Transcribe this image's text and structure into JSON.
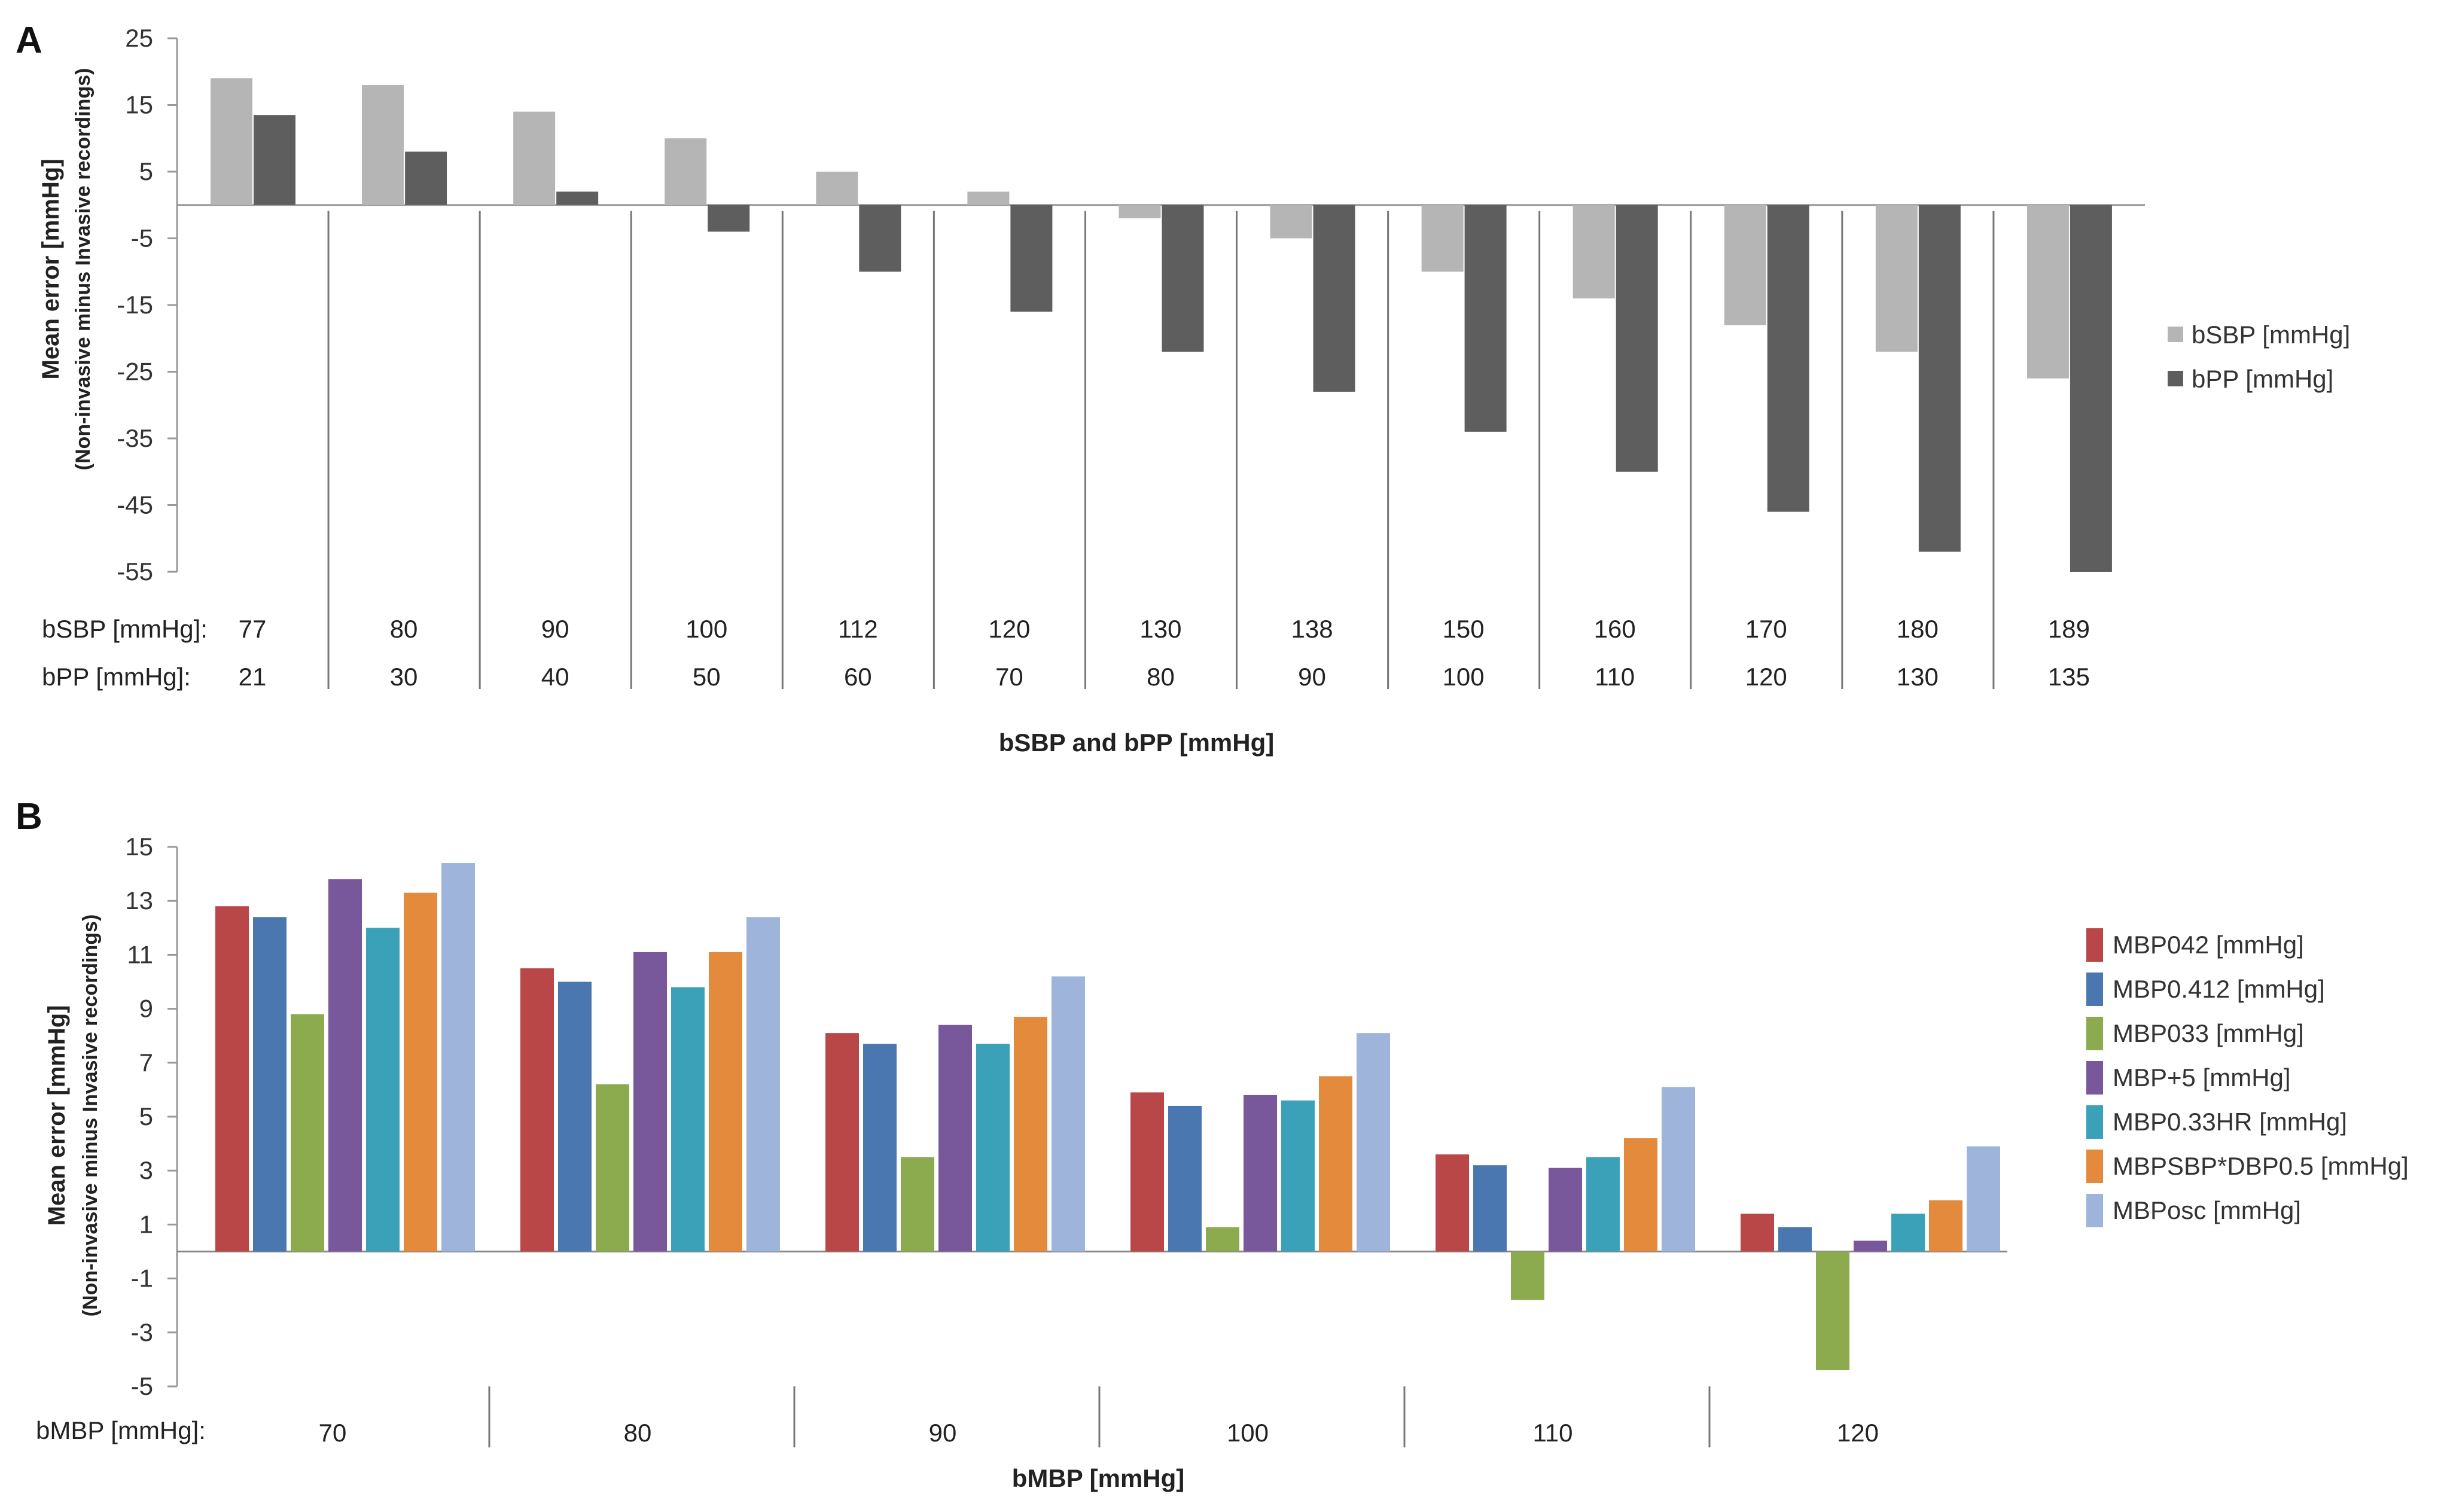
{
  "colors": {
    "bSBP": "#b5b5b5",
    "bPP": "#5e5e5e",
    "MBP042": "#b94747",
    "MBP0412": "#4a77b0",
    "MBP033": "#8cab4e",
    "MBP5": "#78579b",
    "MBP033HR": "#3aa1b8",
    "MBPSBP": "#e48a3c",
    "MBPosc": "#9fb4da"
  },
  "chart_data": [
    {
      "panel": "A",
      "type": "bar",
      "ylabel": "Mean error [mmHg]",
      "ylabel2": "(Non-invasive minus Invasive recordings)",
      "xlabel": "bSBP and bPP [mmHg]",
      "ylim": [
        -55,
        25
      ],
      "yticks": [
        25,
        15,
        5,
        -5,
        -15,
        -25,
        -35,
        -45,
        -55
      ],
      "row_labels": [
        "bSBP [mmHg]:",
        "bPP [mmHg]:"
      ],
      "categories_bSBP": [
        "77",
        "80",
        "90",
        "100",
        "112",
        "120",
        "130",
        "138",
        "150",
        "160",
        "170",
        "180",
        "189"
      ],
      "categories_bPP": [
        "21",
        "30",
        "40",
        "50",
        "60",
        "70",
        "80",
        "90",
        "100",
        "110",
        "120",
        "130",
        "135"
      ],
      "legend_position": "right",
      "series": [
        {
          "name": "bSBP [mmHg]",
          "color_key": "bSBP",
          "values": [
            19,
            18,
            14,
            10,
            5,
            2,
            -2,
            -5,
            -10,
            -14,
            -18,
            -22,
            -26
          ]
        },
        {
          "name": "bPP [mmHg]",
          "color_key": "bPP",
          "values": [
            13.5,
            8,
            2,
            -4,
            -10,
            -16,
            -22,
            -28,
            -34,
            -40,
            -46,
            -52,
            -55
          ]
        }
      ]
    },
    {
      "panel": "B",
      "type": "bar",
      "ylabel": "Mean error [mmHg]",
      "ylabel2": "(Non-invasive minus Invasive recordings)",
      "xlabel": "bMBP [mmHg]",
      "ylim": [
        -5,
        15
      ],
      "yticks": [
        15,
        13,
        11,
        9,
        7,
        5,
        3,
        1,
        -1,
        -3,
        -5
      ],
      "row_label": "bMBP [mmHg]:",
      "categories": [
        "70",
        "80",
        "90",
        "100",
        "110",
        "120"
      ],
      "legend_position": "right",
      "series": [
        {
          "name": "MBP042 [mmHg]",
          "color_key": "MBP042",
          "values": [
            12.8,
            10.5,
            8.1,
            5.9,
            3.6,
            1.4
          ]
        },
        {
          "name": "MBP0.412 [mmHg]",
          "color_key": "MBP0412",
          "values": [
            12.4,
            10.0,
            7.7,
            5.4,
            3.2,
            0.9
          ]
        },
        {
          "name": "MBP033 [mmHg]",
          "color_key": "MBP033",
          "values": [
            8.8,
            6.2,
            3.5,
            0.9,
            -1.8,
            -4.4
          ]
        },
        {
          "name": "MBP+5 [mmHg]",
          "color_key": "MBP5",
          "values": [
            13.8,
            11.1,
            8.4,
            5.8,
            3.1,
            0.4
          ]
        },
        {
          "name": "MBP0.33HR [mmHg]",
          "color_key": "MBP033HR",
          "values": [
            12.0,
            9.8,
            7.7,
            5.6,
            3.5,
            1.4
          ]
        },
        {
          "name": "MBPSBP*DBP0.5 [mmHg]",
          "color_key": "MBPSBP",
          "values": [
            13.3,
            11.1,
            8.7,
            6.5,
            4.2,
            1.9
          ]
        },
        {
          "name": "MBPosc [mmHg]",
          "color_key": "MBPosc",
          "values": [
            14.4,
            12.4,
            10.2,
            8.1,
            6.1,
            3.9
          ]
        }
      ]
    }
  ]
}
